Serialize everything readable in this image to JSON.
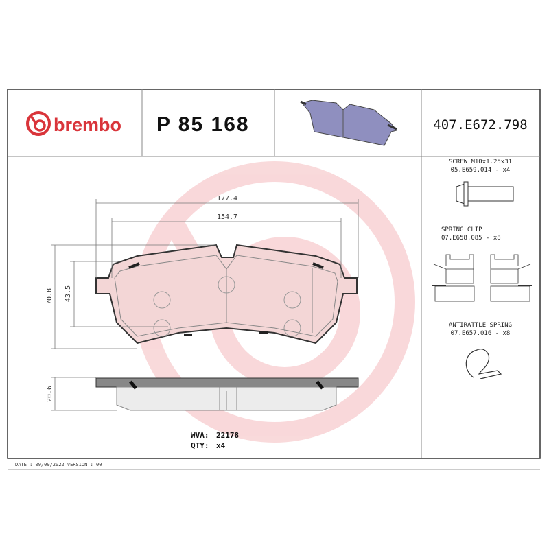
{
  "header": {
    "brand": "brembo",
    "part_number": "P 85 168",
    "reference_code": "407.E672.798",
    "brand_color": "#d9343a"
  },
  "drawing": {
    "dim_width_outer": "177.4",
    "dim_width_inner": "154.7",
    "dim_height_outer": "70.8",
    "dim_height_inner": "43.5",
    "dim_thickness": "20.6",
    "wva_label": "WVA:",
    "wva_value": "22178",
    "qty_label": "QTY:",
    "qty_value": "x4"
  },
  "accessories": [
    {
      "name": "SCREW M10x1.25x31",
      "code": "05.E659.014 - x4",
      "icon": "screw-icon"
    },
    {
      "name": "SPRING CLIP",
      "code": "07.E658.085 - x8",
      "icon": "spring-clip-icon"
    },
    {
      "name": "ANTIRATTLE SPRING",
      "code": "07.E657.016 - x8",
      "icon": "antirattle-spring-icon"
    }
  ],
  "footer": {
    "date_version": "DATE : 09/09/2022 VERSION : 00"
  }
}
